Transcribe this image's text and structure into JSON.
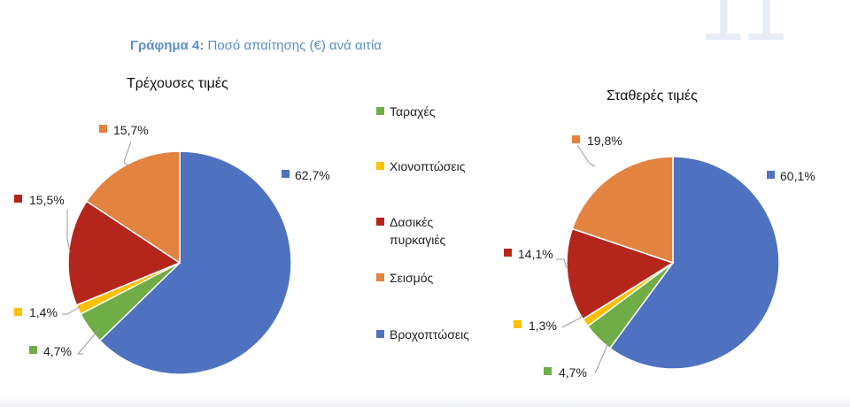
{
  "page": {
    "number": "11",
    "figure_title_bold": "Γράφημα 4:",
    "figure_title_rest": " Ποσό απαίτησης (€) ανά αιτία"
  },
  "legend": [
    {
      "label": "Ταραχές",
      "color": "#70ad47"
    },
    {
      "label": "Χιονοπτώσεις",
      "color": "#ffc000"
    },
    {
      "label": "Δασικές πυρκαγιές",
      "color": "#b4261b"
    },
    {
      "label": "Σεισμός",
      "color": "#e2833f"
    },
    {
      "label": "Βροχοπτώσεις",
      "color": "#4e72c0"
    }
  ],
  "chart_data": [
    {
      "type": "pie",
      "title": "Τρέχουσες τιμές",
      "categories": [
        "Βροχοπτώσεις",
        "Ταραχές",
        "Χιονοπτώσεις",
        "Δασικές πυρκαγιές",
        "Σεισμός"
      ],
      "values": [
        62.7,
        4.7,
        1.4,
        15.5,
        15.7
      ],
      "labels": [
        "62,7%",
        "4,7%",
        "1,4%",
        "15,5%",
        "15,7%"
      ],
      "colors": [
        "#4e72c0",
        "#70ad47",
        "#ffc000",
        "#b4261b",
        "#e2833f"
      ]
    },
    {
      "type": "pie",
      "title": "Σταθερές τιμές",
      "categories": [
        "Βροχοπτώσεις",
        "Ταραχές",
        "Χιονοπτώσεις",
        "Δασικές πυρκαγιές",
        "Σεισμός"
      ],
      "values": [
        60.1,
        4.7,
        1.3,
        14.1,
        19.8
      ],
      "labels": [
        "60,1%",
        "4,7%",
        "1,3%",
        "14,1%",
        "19,8%"
      ],
      "colors": [
        "#4e72c0",
        "#70ad47",
        "#ffc000",
        "#b4261b",
        "#e2833f"
      ]
    }
  ]
}
